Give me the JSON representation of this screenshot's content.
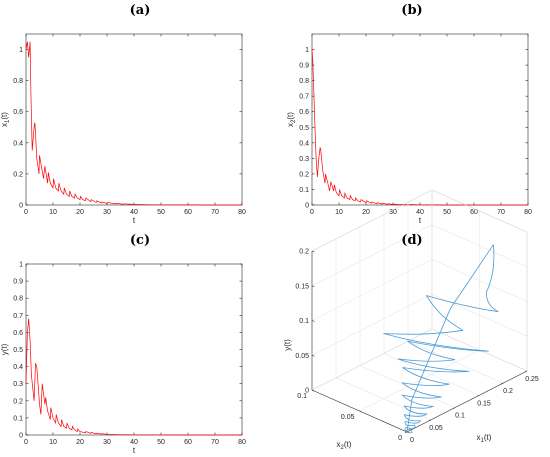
{
  "panels": [
    {
      "label": "(a)",
      "chart_data": {
        "type": "line",
        "xlabel": "t",
        "ylabel": "x_1(t)",
        "xlim": [
          0,
          80
        ],
        "ylim": [
          0,
          1.1
        ],
        "xticks": [
          "0",
          "10",
          "20",
          "30",
          "40",
          "50",
          "60",
          "70",
          "80"
        ],
        "yticks": [
          "0",
          "0.2",
          "0.4",
          "0.6",
          "0.8",
          "1"
        ],
        "line_color": "#ff0000",
        "description": "damped impulsive decay from 1.05",
        "series": [
          {
            "x": [
              0,
              0.5,
              1,
              1.5,
              1.8,
              2.3,
              3,
              3.3,
              4,
              4.8,
              5,
              6,
              6.5,
              7,
              8,
              8.3,
              9,
              10,
              10.2,
              11,
              12,
              12.2,
              13,
              14,
              14.2,
              15,
              16,
              16.2,
              17,
              18,
              18.2,
              19,
              20,
              20.2,
              21,
              22,
              22.2,
              24,
              24.2,
              26,
              26.2,
              28,
              28.2,
              30,
              30.2,
              33,
              33.2,
              36,
              36.2,
              40,
              45,
              50,
              60,
              70,
              80
            ],
            "y": [
              1.0,
              1.05,
              0.95,
              1.05,
              0.72,
              0.35,
              0.5,
              0.53,
              0.3,
              0.2,
              0.32,
              0.22,
              0.17,
              0.25,
              0.14,
              0.21,
              0.14,
              0.11,
              0.17,
              0.11,
              0.09,
              0.14,
              0.09,
              0.07,
              0.11,
              0.07,
              0.055,
              0.09,
              0.055,
              0.045,
              0.07,
              0.045,
              0.035,
              0.055,
              0.035,
              0.028,
              0.045,
              0.022,
              0.035,
              0.017,
              0.027,
              0.013,
              0.02,
              0.01,
              0.016,
              0.007,
              0.011,
              0.005,
              0.008,
              0.004,
              0.002,
              0.001,
              0.0005,
              0.0002,
              0.0001
            ]
          }
        ]
      }
    },
    {
      "label": "(b)",
      "chart_data": {
        "type": "line",
        "xlabel": "t",
        "ylabel": "x_2(t)",
        "xlim": [
          0,
          80
        ],
        "ylim": [
          0,
          1.1
        ],
        "xticks": [
          "0",
          "10",
          "20",
          "30",
          "40",
          "50",
          "60",
          "70",
          "80"
        ],
        "yticks": [
          "0",
          "0.1",
          "0.2",
          "0.3",
          "0.4",
          "0.5",
          "0.6",
          "0.7",
          "0.8",
          "0.9",
          "1"
        ],
        "line_color": "#ff0000",
        "series": [
          {
            "x": [
              0,
              0.3,
              1,
              1.5,
              2,
              2.5,
              3,
              3.2,
              4,
              4.8,
              5,
              6,
              6.5,
              7,
              8,
              8.3,
              9,
              10,
              10.2,
              11,
              12,
              12.2,
              13,
              14,
              14.2,
              15,
              16,
              16.2,
              17,
              18,
              18.2,
              20,
              20.2,
              22,
              22.2,
              24,
              24.2,
              26,
              26.2,
              28,
              28.2,
              30,
              30.2,
              33,
              33.2,
              36,
              36.2,
              40,
              45,
              50,
              60,
              70,
              80
            ],
            "y": [
              1.0,
              0.93,
              0.55,
              0.3,
              0.18,
              0.3,
              0.37,
              0.36,
              0.22,
              0.14,
              0.2,
              0.13,
              0.09,
              0.15,
              0.09,
              0.13,
              0.08,
              0.06,
              0.1,
              0.06,
              0.045,
              0.075,
              0.045,
              0.035,
              0.06,
              0.035,
              0.027,
              0.045,
              0.027,
              0.02,
              0.035,
              0.015,
              0.027,
              0.011,
              0.02,
              0.008,
              0.015,
              0.006,
              0.011,
              0.004,
              0.008,
              0.003,
              0.006,
              0.002,
              0.004,
              0.001,
              0.003,
              0.001,
              0.0005,
              0.0003,
              0.0001,
              0,
              0
            ]
          }
        ]
      }
    },
    {
      "label": "(c)",
      "chart_data": {
        "type": "line",
        "xlabel": "t",
        "ylabel": "y(t)",
        "xlim": [
          0,
          80
        ],
        "ylim": [
          0,
          1.0
        ],
        "xticks": [
          "0",
          "10",
          "20",
          "30",
          "40",
          "50",
          "60",
          "70",
          "80"
        ],
        "yticks": [
          "0",
          "0.1",
          "0.2",
          "0.3",
          "0.4",
          "0.5",
          "0.6",
          "0.7",
          "0.8",
          "0.9",
          "1"
        ],
        "line_color": "#ff0000",
        "series": [
          {
            "x": [
              0,
              0.5,
              1,
              1.5,
              2,
              3,
              3.5,
              4,
              5,
              5.5,
              6,
              7,
              7.3,
              8,
              9,
              9.2,
              10,
              11,
              11.2,
              12,
              13,
              13.2,
              14,
              15,
              15.2,
              16,
              17,
              17.2,
              18,
              19,
              19.2,
              20,
              22,
              22.2,
              24,
              24.2,
              26,
              26.2,
              28,
              28.2,
              30,
              32,
              35,
              40,
              50,
              60,
              70,
              80
            ],
            "y": [
              0.3,
              0.6,
              0.68,
              0.55,
              0.35,
              0.2,
              0.42,
              0.4,
              0.18,
              0.12,
              0.3,
              0.18,
              0.22,
              0.14,
              0.09,
              0.16,
              0.1,
              0.07,
              0.12,
              0.07,
              0.05,
              0.09,
              0.05,
              0.04,
              0.07,
              0.04,
              0.03,
              0.05,
              0.03,
              0.02,
              0.035,
              0.02,
              0.012,
              0.02,
              0.01,
              0.015,
              0.007,
              0.011,
              0.005,
              0.008,
              0.004,
              0.003,
              0.002,
              0.001,
              0.0005,
              0.0002,
              0.0001,
              0
            ]
          }
        ]
      }
    },
    {
      "label": "(d)",
      "chart_data": {
        "type": "line3d",
        "xlabel": "x_1(t)",
        "ylabel": "x_2(t)",
        "zlabel": "y(t)",
        "xlim": [
          0,
          0.25
        ],
        "ylim": [
          0,
          0.1
        ],
        "zlim": [
          0,
          0.2
        ],
        "xticks": [
          "0",
          "0.05",
          "0.1",
          "0.15",
          "0.2",
          "0.25"
        ],
        "yticks": [
          "0",
          "0.05",
          "0.1"
        ],
        "zticks": [
          "0",
          "0.05",
          "0.1",
          "0.15",
          "0.2"
        ],
        "line_color": "#4a9ad6"
      }
    }
  ]
}
